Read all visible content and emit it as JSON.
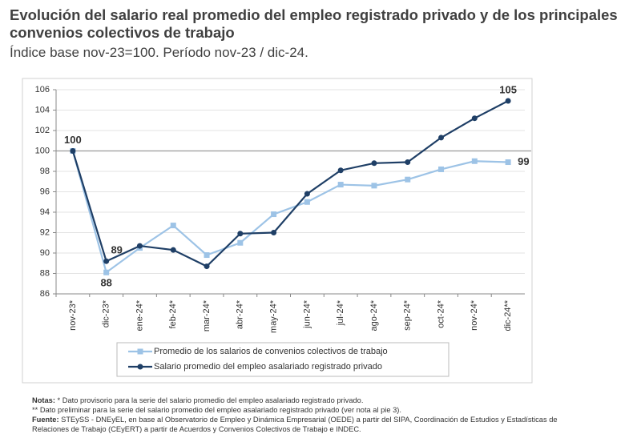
{
  "chart_data": {
    "type": "line",
    "title": "Evolución del salario real promedio del empleo registrado privado y de los principales convenios colectivos de trabajo",
    "subtitle": "Índice base nov-23=100. Período nov-23 / dic-24.",
    "categories": [
      "nov-23*",
      "dic-23*",
      "ene-24*",
      "feb-24*",
      "mar-24*",
      "abr-24*",
      "may-24*",
      "jun-24*",
      "jul-24*",
      "ago-24*",
      "sep-24*",
      "oct-24*",
      "nov-24*",
      "dic-24**"
    ],
    "series": [
      {
        "name": "Promedio de los salarios de convenios colectivos de trabajo",
        "color": "#9dc3e6",
        "marker": "square",
        "values": [
          100,
          88.1,
          90.5,
          92.7,
          89.8,
          91.0,
          93.8,
          95.0,
          96.7,
          96.6,
          97.2,
          98.2,
          99.0,
          98.9
        ],
        "value_labels": [
          null,
          "88",
          null,
          null,
          null,
          null,
          null,
          null,
          null,
          null,
          null,
          null,
          null,
          "99"
        ]
      },
      {
        "name": "Salario promedio del empleo asalariado registrado privado",
        "color": "#1f3f66",
        "marker": "circle",
        "values": [
          100,
          89.2,
          90.7,
          90.3,
          88.7,
          91.9,
          92.0,
          95.8,
          98.1,
          98.8,
          98.9,
          101.3,
          103.2,
          104.9
        ],
        "value_labels": [
          "100",
          "89",
          null,
          null,
          null,
          null,
          null,
          null,
          null,
          null,
          null,
          null,
          null,
          "105"
        ]
      }
    ],
    "ylim": [
      86,
      106
    ],
    "yticks": [
      86,
      88,
      90,
      92,
      94,
      96,
      98,
      100,
      102,
      104,
      106
    ],
    "grid": true,
    "baseline": 100
  },
  "notes": [
    {
      "label": "Notas:",
      "text": "* Dato provisorio para la serie del salario promedio del empleo asalariado registrado privado."
    },
    {
      "text": "** Dato preliminar para la serie del salario promedio del empleo asalariado registrado privado (ver nota al pie 3)."
    }
  ],
  "source": {
    "label": "Fuente:",
    "text": "STEySS - DNEyEL, en base al Observatorio de Empleo y Dinámica Empresarial (OEDE) a partir del SIPA, Coordinación de Estudios y Estadísticas de Relaciones de Trabajo (CEyERT) a partir de Acuerdos y Convenios Colectivos de Trabajo e INDEC."
  }
}
